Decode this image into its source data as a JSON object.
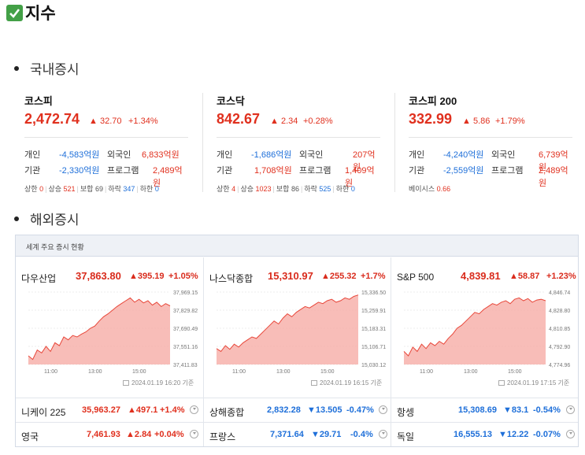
{
  "title": "지수",
  "domestic_heading": "국내증시",
  "overseas_heading": "해외증시",
  "domestic": [
    {
      "name": "코스피",
      "value": "2,472.74",
      "change": "32.70",
      "rate": "+1.34%",
      "rows": [
        {
          "l1": "개인",
          "v1": "-4,583억원",
          "l2": "외국인",
          "v2": "6,833억원"
        },
        {
          "l1": "기관",
          "v1": "-2,330억원",
          "l2": "프로그램",
          "v2": "2,489억원"
        }
      ],
      "breadth": {
        "up_limit_label": "상한",
        "up_limit": "0",
        "up_label": "상승",
        "up": "521",
        "flat_label": "보합",
        "flat": "69",
        "down_label": "하락",
        "down": "347",
        "down_limit_label": "하한",
        "down_limit": "0"
      }
    },
    {
      "name": "코스닥",
      "value": "842.67",
      "change": "2.34",
      "rate": "+0.28%",
      "rows": [
        {
          "l1": "개인",
          "v1": "-1,686억원",
          "l2": "외국인",
          "v2": "207억원"
        },
        {
          "l1": "기관",
          "v1": "1,708억원",
          "l2": "프로그램",
          "v2": "1,409억원"
        }
      ],
      "breadth": {
        "up_limit_label": "상한",
        "up_limit": "4",
        "up_label": "상승",
        "up": "1023",
        "flat_label": "보합",
        "flat": "86",
        "down_label": "하락",
        "down": "525",
        "down_limit_label": "하한",
        "down_limit": "0"
      }
    },
    {
      "name": "코스피 200",
      "value": "332.99",
      "change": "5.86",
      "rate": "+1.79%",
      "rows": [
        {
          "l1": "개인",
          "v1": "-4,240억원",
          "l2": "외국인",
          "v2": "6,739억원"
        },
        {
          "l1": "기관",
          "v1": "-2,559억원",
          "l2": "프로그램",
          "v2": "2,489억원"
        }
      ],
      "basis_label": "베이시스",
      "basis": "0.66"
    }
  ],
  "world": {
    "header": "세계 주요 증시 현황",
    "charts": [
      {
        "name": "다우산업",
        "value": "37,863.80",
        "change": "395.19",
        "rate": "+1.05%",
        "yticks": [
          "37,969.15",
          "37,829.82",
          "37,690.49",
          "37,551.16",
          "37,411.83"
        ],
        "xticks": [
          "11:00",
          "13:00",
          "15:00"
        ],
        "stamp": "2024.01.19 16:20 기준"
      },
      {
        "name": "나스닥종합",
        "value": "15,310.97",
        "change": "255.32",
        "rate": "+1.7%",
        "yticks": [
          "15,336.50",
          "15,259.91",
          "15,183.31",
          "15,106.71",
          "15,030.12"
        ],
        "xticks": [
          "11:00",
          "13:00",
          "15:00"
        ],
        "stamp": "2024.01.19 16:15 기준"
      },
      {
        "name": "S&P 500",
        "value": "4,839.81",
        "change": "58.87",
        "rate": "+1.23%",
        "yticks": [
          "4,846.74",
          "4,828.80",
          "4,810.85",
          "4,792.90",
          "4,774.96"
        ],
        "xticks": [
          "11:00",
          "13:00",
          "15:00"
        ],
        "stamp": "2024.01.19 17:15 기준"
      }
    ],
    "quotes": [
      [
        {
          "name": "니케이 225",
          "value": "35,963.27",
          "change": "497.1",
          "rate": "+1.4%",
          "dir": "up"
        },
        {
          "name": "상해종합",
          "value": "2,832.28",
          "change": "13.505",
          "rate": "-0.47%",
          "dir": "down"
        },
        {
          "name": "항셍",
          "value": "15,308.69",
          "change": "83.1",
          "rate": "-0.54%",
          "dir": "down"
        }
      ],
      [
        {
          "name": "영국",
          "value": "7,461.93",
          "change": "2.84",
          "rate": "+0.04%",
          "dir": "up"
        },
        {
          "name": "프랑스",
          "value": "7,371.64",
          "change": "29.71",
          "rate": "-0.4%",
          "dir": "down"
        },
        {
          "name": "독일",
          "value": "16,555.13",
          "change": "12.22",
          "rate": "-0.07%",
          "dir": "down"
        }
      ]
    ]
  },
  "colors": {
    "up": "#e0301e",
    "down": "#1e6fd9",
    "chart_fill": "#f6a7a0",
    "chart_line": "#e8473a"
  }
}
